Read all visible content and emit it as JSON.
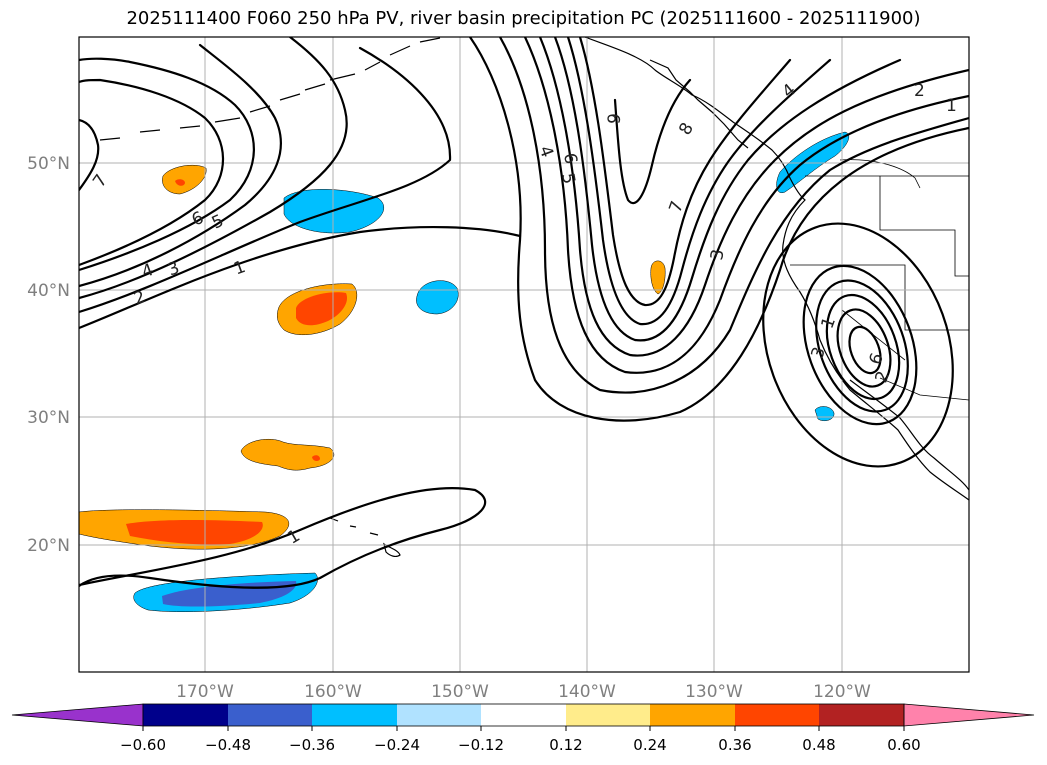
{
  "title": "2025111400 F060 250 hPa PV, river basin precipitation PC (2025111600 - 2025111900)",
  "map": {
    "latitude_labels": [
      "50°N",
      "40°N",
      "30°N",
      "20°N"
    ],
    "longitude_labels": [
      "170°W",
      "160°W",
      "150°W",
      "140°W",
      "130°W",
      "120°W"
    ]
  },
  "contour_labels": {
    "pv_west_7": "7",
    "pv_west_6": "6",
    "pv_west_5": "5",
    "pv_west_4": "4",
    "pv_west_3": "3",
    "pv_west_2": "2",
    "pv_west_1": "1",
    "pv_trough_4": "4",
    "pv_trough_5": "5",
    "pv_trough_6": "6",
    "pv_trough_9": "9",
    "pv_trough_8": "8",
    "pv_trough_7": "7",
    "pv_trough_3": "3",
    "pv_ne_2": "2",
    "pv_ne_1": "1",
    "pv_ne_4": "4",
    "pv_south_1": "1",
    "pv_low_3": "3",
    "pv_low_1": "1",
    "pv_low_6": "6",
    "pv_low_2": "2"
  },
  "colorbar": {
    "ticks": [
      "−0.60",
      "−0.48",
      "−0.36",
      "−0.24",
      "−0.12",
      "0.12",
      "0.24",
      "0.36",
      "0.48",
      "0.60"
    ],
    "colors": {
      "under": "#9932cc",
      "b1": "#00008b",
      "b2": "#3a5fcd",
      "b3": "#00bfff",
      "b4": "#b0e2ff",
      "b5": "#ffffff",
      "b6": "#ffec8b",
      "b7": "#ffa500",
      "b8": "#ff4500",
      "b9": "#b22222",
      "over": "#ff82ab"
    }
  }
}
